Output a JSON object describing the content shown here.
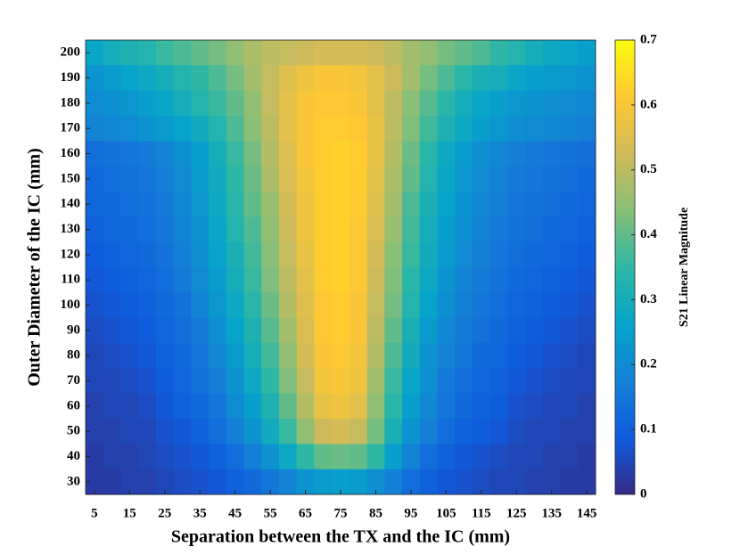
{
  "chart_data": {
    "type": "heatmap",
    "xlabel": "Separation between the TX and the IC (mm)",
    "ylabel": "Outer Diameter of the IC (mm)",
    "colorbar_label": "S21 Linear Magnitude",
    "colormap": "parula",
    "x": [
      5,
      10,
      15,
      20,
      25,
      30,
      35,
      40,
      45,
      50,
      55,
      60,
      65,
      70,
      75,
      80,
      85,
      90,
      95,
      100,
      105,
      110,
      115,
      120,
      125,
      130,
      135,
      140,
      145
    ],
    "y": [
      200,
      190,
      180,
      170,
      160,
      150,
      140,
      130,
      120,
      110,
      100,
      90,
      80,
      70,
      60,
      50,
      40,
      30
    ],
    "z": [
      [
        0.27,
        0.3,
        0.32,
        0.33,
        0.36,
        0.38,
        0.4,
        0.42,
        0.45,
        0.48,
        0.5,
        0.51,
        0.52,
        0.53,
        0.53,
        0.53,
        0.52,
        0.5,
        0.47,
        0.45,
        0.42,
        0.4,
        0.38,
        0.35,
        0.33,
        0.3,
        0.28,
        0.27,
        0.25
      ],
      [
        0.22,
        0.24,
        0.26,
        0.28,
        0.3,
        0.33,
        0.35,
        0.38,
        0.42,
        0.47,
        0.51,
        0.55,
        0.58,
        0.6,
        0.6,
        0.59,
        0.56,
        0.52,
        0.47,
        0.42,
        0.38,
        0.34,
        0.31,
        0.3,
        0.27,
        0.25,
        0.24,
        0.23,
        0.22
      ],
      [
        0.2,
        0.21,
        0.23,
        0.25,
        0.27,
        0.3,
        0.33,
        0.36,
        0.4,
        0.45,
        0.51,
        0.56,
        0.6,
        0.61,
        0.61,
        0.6,
        0.56,
        0.5,
        0.44,
        0.39,
        0.34,
        0.3,
        0.27,
        0.25,
        0.23,
        0.22,
        0.21,
        0.2,
        0.19
      ],
      [
        0.18,
        0.19,
        0.2,
        0.22,
        0.24,
        0.26,
        0.29,
        0.33,
        0.38,
        0.44,
        0.5,
        0.56,
        0.6,
        0.62,
        0.62,
        0.61,
        0.57,
        0.5,
        0.43,
        0.37,
        0.32,
        0.28,
        0.25,
        0.23,
        0.21,
        0.2,
        0.19,
        0.18,
        0.17
      ],
      [
        0.13,
        0.14,
        0.15,
        0.16,
        0.18,
        0.21,
        0.25,
        0.3,
        0.36,
        0.42,
        0.49,
        0.55,
        0.6,
        0.62,
        0.63,
        0.62,
        0.57,
        0.49,
        0.41,
        0.34,
        0.28,
        0.24,
        0.21,
        0.19,
        0.17,
        0.16,
        0.15,
        0.14,
        0.13
      ],
      [
        0.12,
        0.13,
        0.14,
        0.15,
        0.17,
        0.2,
        0.24,
        0.29,
        0.35,
        0.41,
        0.48,
        0.54,
        0.59,
        0.62,
        0.63,
        0.62,
        0.56,
        0.48,
        0.4,
        0.33,
        0.27,
        0.23,
        0.2,
        0.18,
        0.16,
        0.15,
        0.14,
        0.13,
        0.12
      ],
      [
        0.11,
        0.12,
        0.13,
        0.14,
        0.16,
        0.19,
        0.23,
        0.28,
        0.34,
        0.4,
        0.46,
        0.53,
        0.58,
        0.62,
        0.63,
        0.62,
        0.55,
        0.47,
        0.38,
        0.31,
        0.26,
        0.22,
        0.19,
        0.17,
        0.15,
        0.14,
        0.13,
        0.12,
        0.11
      ],
      [
        0.1,
        0.11,
        0.12,
        0.13,
        0.15,
        0.18,
        0.22,
        0.27,
        0.33,
        0.38,
        0.45,
        0.52,
        0.58,
        0.62,
        0.63,
        0.61,
        0.54,
        0.46,
        0.37,
        0.3,
        0.25,
        0.21,
        0.18,
        0.16,
        0.14,
        0.13,
        0.12,
        0.11,
        0.1
      ],
      [
        0.09,
        0.1,
        0.11,
        0.12,
        0.14,
        0.17,
        0.21,
        0.26,
        0.31,
        0.37,
        0.44,
        0.51,
        0.57,
        0.62,
        0.63,
        0.61,
        0.53,
        0.44,
        0.36,
        0.29,
        0.24,
        0.2,
        0.17,
        0.15,
        0.13,
        0.12,
        0.11,
        0.1,
        0.09
      ],
      [
        0.08,
        0.09,
        0.1,
        0.11,
        0.13,
        0.16,
        0.2,
        0.24,
        0.3,
        0.36,
        0.43,
        0.5,
        0.56,
        0.62,
        0.63,
        0.61,
        0.52,
        0.43,
        0.34,
        0.28,
        0.22,
        0.18,
        0.16,
        0.14,
        0.12,
        0.11,
        0.1,
        0.09,
        0.08
      ],
      [
        0.07,
        0.08,
        0.09,
        0.1,
        0.12,
        0.14,
        0.18,
        0.23,
        0.28,
        0.34,
        0.41,
        0.49,
        0.55,
        0.61,
        0.62,
        0.6,
        0.51,
        0.42,
        0.33,
        0.26,
        0.21,
        0.17,
        0.15,
        0.13,
        0.11,
        0.1,
        0.09,
        0.08,
        0.07
      ],
      [
        0.06,
        0.07,
        0.08,
        0.09,
        0.11,
        0.13,
        0.16,
        0.21,
        0.26,
        0.32,
        0.39,
        0.47,
        0.54,
        0.61,
        0.62,
        0.6,
        0.5,
        0.4,
        0.31,
        0.24,
        0.19,
        0.16,
        0.14,
        0.12,
        0.1,
        0.09,
        0.08,
        0.07,
        0.06
      ],
      [
        0.05,
        0.06,
        0.07,
        0.08,
        0.1,
        0.12,
        0.15,
        0.19,
        0.24,
        0.3,
        0.37,
        0.45,
        0.53,
        0.6,
        0.61,
        0.59,
        0.49,
        0.38,
        0.29,
        0.22,
        0.18,
        0.15,
        0.12,
        0.11,
        0.09,
        0.08,
        0.07,
        0.06,
        0.05
      ],
      [
        0.05,
        0.05,
        0.06,
        0.07,
        0.09,
        0.11,
        0.14,
        0.17,
        0.22,
        0.28,
        0.35,
        0.43,
        0.51,
        0.59,
        0.6,
        0.58,
        0.47,
        0.36,
        0.27,
        0.21,
        0.16,
        0.13,
        0.11,
        0.1,
        0.08,
        0.07,
        0.06,
        0.05,
        0.05
      ],
      [
        0.04,
        0.05,
        0.05,
        0.06,
        0.08,
        0.1,
        0.12,
        0.15,
        0.2,
        0.25,
        0.32,
        0.4,
        0.49,
        0.57,
        0.58,
        0.56,
        0.45,
        0.34,
        0.25,
        0.19,
        0.15,
        0.12,
        0.1,
        0.09,
        0.07,
        0.06,
        0.05,
        0.05,
        0.04
      ],
      [
        0.04,
        0.04,
        0.05,
        0.05,
        0.07,
        0.08,
        0.1,
        0.13,
        0.17,
        0.22,
        0.29,
        0.36,
        0.45,
        0.52,
        0.53,
        0.51,
        0.42,
        0.31,
        0.22,
        0.17,
        0.13,
        0.1,
        0.09,
        0.08,
        0.06,
        0.05,
        0.05,
        0.04,
        0.04
      ],
      [
        0.03,
        0.04,
        0.04,
        0.05,
        0.06,
        0.07,
        0.08,
        0.1,
        0.13,
        0.17,
        0.22,
        0.28,
        0.35,
        0.4,
        0.41,
        0.4,
        0.35,
        0.25,
        0.18,
        0.13,
        0.1,
        0.08,
        0.07,
        0.06,
        0.05,
        0.05,
        0.04,
        0.04,
        0.03
      ],
      [
        0.03,
        0.03,
        0.04,
        0.04,
        0.05,
        0.06,
        0.07,
        0.08,
        0.1,
        0.12,
        0.15,
        0.18,
        0.22,
        0.24,
        0.25,
        0.24,
        0.21,
        0.17,
        0.13,
        0.1,
        0.08,
        0.07,
        0.06,
        0.05,
        0.05,
        0.04,
        0.04,
        0.03,
        0.03
      ]
    ],
    "xlim": [
      2.5,
      147.5
    ],
    "ylim": [
      25,
      205
    ],
    "xticks": [
      5,
      15,
      25,
      35,
      45,
      55,
      65,
      75,
      85,
      95,
      105,
      115,
      125,
      135,
      145
    ],
    "yticks": [
      30,
      40,
      50,
      60,
      70,
      80,
      90,
      100,
      110,
      120,
      130,
      140,
      150,
      160,
      170,
      180,
      190,
      200
    ],
    "clim": [
      0,
      0.7
    ],
    "cticks": [
      0,
      0.1,
      0.2,
      0.3,
      0.4,
      0.5,
      0.6,
      0.7
    ]
  }
}
